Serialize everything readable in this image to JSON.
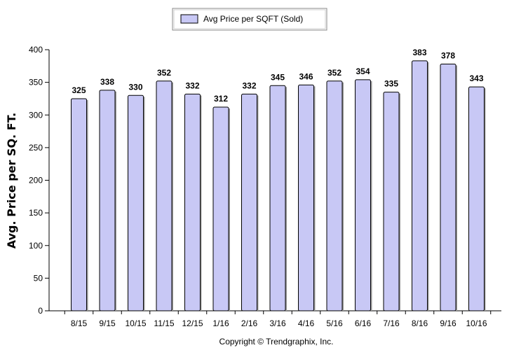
{
  "chart_data": {
    "type": "bar",
    "categories": [
      "8/15",
      "9/15",
      "10/15",
      "11/15",
      "12/15",
      "1/16",
      "2/16",
      "3/16",
      "4/16",
      "5/16",
      "6/16",
      "7/16",
      "8/16",
      "9/16",
      "10/16"
    ],
    "series": [
      {
        "name": "Avg Price per SQFT (Sold)",
        "values": [
          325,
          338,
          330,
          352,
          332,
          312,
          332,
          345,
          346,
          352,
          354,
          335,
          383,
          378,
          343
        ]
      }
    ],
    "title": "",
    "xlabel": "",
    "ylabel": "Avg. Price per SQ. FT.",
    "ylim": [
      0,
      400
    ],
    "yticks": [
      0,
      50,
      100,
      150,
      200,
      250,
      300,
      350,
      400
    ],
    "grid": false,
    "legend_position": "top-center",
    "bar_color": "#c8c8f5",
    "bar_stroke": "#000000",
    "show_value_labels": true
  },
  "footer": {
    "copyright": "Copyright © Trendgraphix, Inc."
  }
}
